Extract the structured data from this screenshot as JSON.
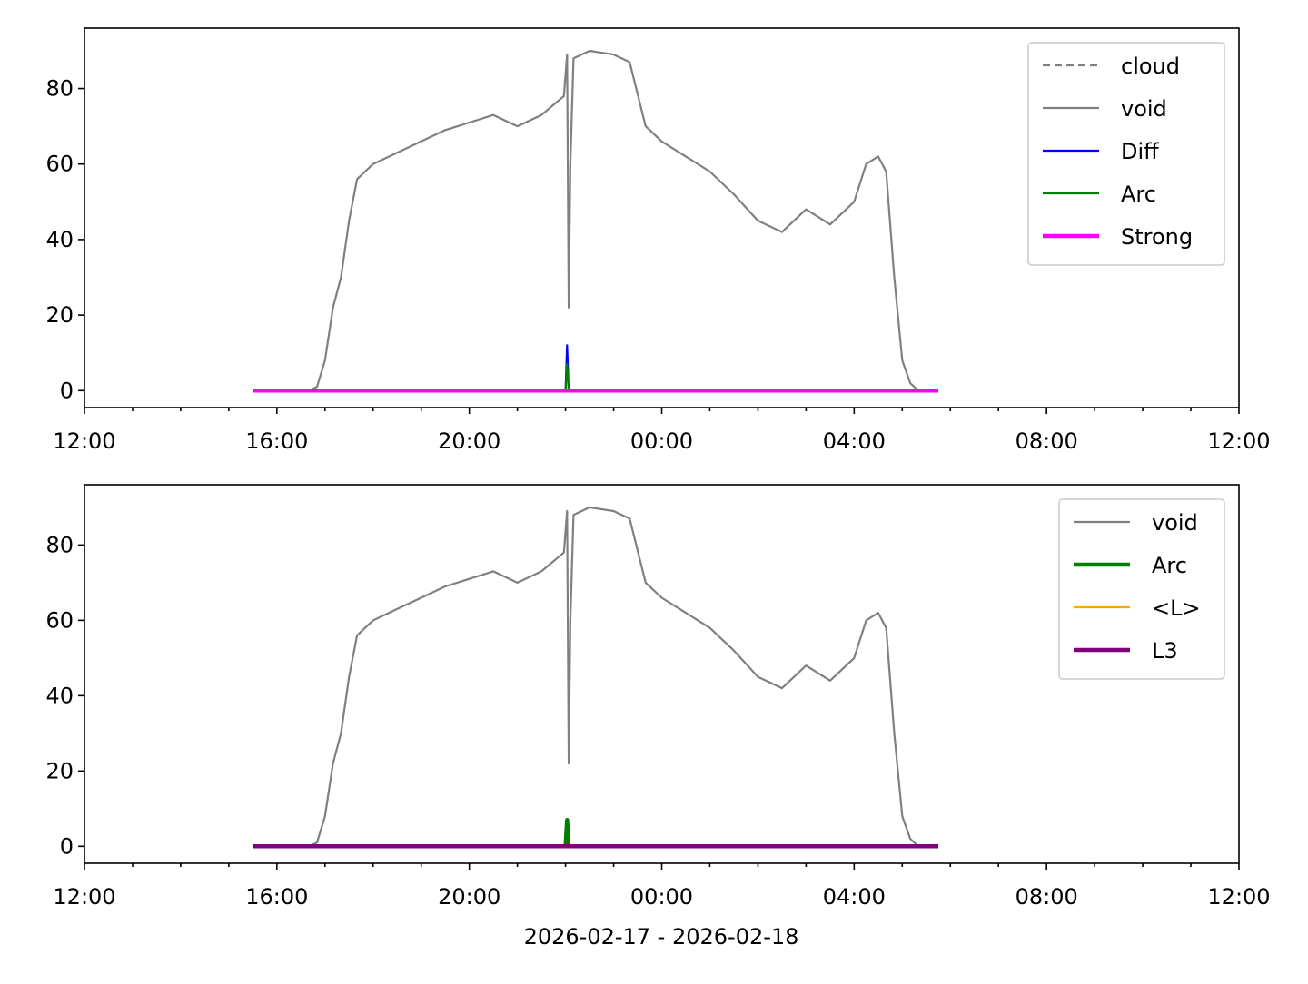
{
  "chart_data": [
    {
      "type": "line",
      "title": "",
      "xlabel": "",
      "ylabel": "",
      "xlim": [
        "2026-02-17 12:00",
        "2026-02-18 12:00"
      ],
      "ylim": [
        -4.5,
        96
      ],
      "x_ticks": [
        "12:00",
        "16:00",
        "20:00",
        "00:00",
        "04:00",
        "08:00",
        "12:00"
      ],
      "y_ticks": [
        "0",
        "20",
        "40",
        "60",
        "80"
      ],
      "grid": false,
      "legend_position": "top-right",
      "series": [
        {
          "name": "cloud",
          "color": "#808080",
          "style": "dashed",
          "x": [],
          "y": []
        },
        {
          "name": "void",
          "color": "#808080",
          "style": "solid",
          "x": [
            "2026-02-17 15:30",
            "2026-02-17 16:40",
            "2026-02-17 16:50",
            "2026-02-17 17:00",
            "2026-02-17 17:10",
            "2026-02-17 17:20",
            "2026-02-17 17:30",
            "2026-02-17 17:40",
            "2026-02-17 17:50",
            "2026-02-17 18:00",
            "2026-02-17 18:30",
            "2026-02-17 19:00",
            "2026-02-17 19:30",
            "2026-02-17 20:00",
            "2026-02-17 20:30",
            "2026-02-17 21:00",
            "2026-02-17 21:30",
            "2026-02-17 21:58",
            "2026-02-17 22:02",
            "2026-02-17 22:04",
            "2026-02-17 22:06",
            "2026-02-17 22:10",
            "2026-02-17 22:30",
            "2026-02-17 23:00",
            "2026-02-17 23:20",
            "2026-02-17 23:40",
            "2026-02-18 00:00",
            "2026-02-18 00:30",
            "2026-02-18 01:00",
            "2026-02-18 01:30",
            "2026-02-18 02:00",
            "2026-02-18 02:30",
            "2026-02-18 03:00",
            "2026-02-18 03:30",
            "2026-02-18 04:00",
            "2026-02-18 04:15",
            "2026-02-18 04:30",
            "2026-02-18 04:40",
            "2026-02-18 04:50",
            "2026-02-18 05:00",
            "2026-02-18 05:10",
            "2026-02-18 05:20",
            "2026-02-18 05:45"
          ],
          "y": [
            0,
            0,
            1,
            8,
            22,
            30,
            45,
            56,
            58,
            60,
            63,
            66,
            69,
            71,
            73,
            70,
            73,
            78,
            89,
            22,
            60,
            88,
            90,
            89,
            87,
            70,
            66,
            62,
            58,
            52,
            45,
            42,
            48,
            44,
            50,
            60,
            62,
            58,
            30,
            8,
            2,
            0,
            0
          ]
        },
        {
          "name": "Diff",
          "color": "#0000ff",
          "style": "solid",
          "x": [
            "2026-02-17 15:30",
            "2026-02-17 22:00",
            "2026-02-17 22:02",
            "2026-02-17 22:04",
            "2026-02-18 05:45"
          ],
          "y": [
            0,
            0,
            12,
            0,
            0
          ]
        },
        {
          "name": "Arc",
          "color": "#008000",
          "style": "solid",
          "x": [
            "2026-02-17 15:30",
            "2026-02-17 22:00",
            "2026-02-17 22:02",
            "2026-02-17 22:04",
            "2026-02-18 05:45"
          ],
          "y": [
            0,
            0,
            7,
            0,
            0
          ]
        },
        {
          "name": "Strong",
          "color": "#ff00ff",
          "style": "solid",
          "x": [
            "2026-02-17 15:30",
            "2026-02-18 05:45"
          ],
          "y": [
            0,
            0
          ]
        }
      ]
    },
    {
      "type": "line",
      "title": "",
      "xlabel": "2026-02-17 - 2026-02-18",
      "ylabel": "",
      "xlim": [
        "2026-02-17 12:00",
        "2026-02-18 12:00"
      ],
      "ylim": [
        -4.5,
        96
      ],
      "x_ticks": [
        "12:00",
        "16:00",
        "20:00",
        "00:00",
        "04:00",
        "08:00",
        "12:00"
      ],
      "y_ticks": [
        "0",
        "20",
        "40",
        "60",
        "80"
      ],
      "grid": false,
      "legend_position": "top-right",
      "series": [
        {
          "name": "void",
          "color": "#808080",
          "style": "solid",
          "x": [
            "2026-02-17 15:30",
            "2026-02-17 16:40",
            "2026-02-17 16:50",
            "2026-02-17 17:00",
            "2026-02-17 17:10",
            "2026-02-17 17:20",
            "2026-02-17 17:30",
            "2026-02-17 17:40",
            "2026-02-17 17:50",
            "2026-02-17 18:00",
            "2026-02-17 18:30",
            "2026-02-17 19:00",
            "2026-02-17 19:30",
            "2026-02-17 20:00",
            "2026-02-17 20:30",
            "2026-02-17 21:00",
            "2026-02-17 21:30",
            "2026-02-17 21:58",
            "2026-02-17 22:02",
            "2026-02-17 22:04",
            "2026-02-17 22:06",
            "2026-02-17 22:10",
            "2026-02-17 22:30",
            "2026-02-17 23:00",
            "2026-02-17 23:20",
            "2026-02-17 23:40",
            "2026-02-18 00:00",
            "2026-02-18 00:30",
            "2026-02-18 01:00",
            "2026-02-18 01:30",
            "2026-02-18 02:00",
            "2026-02-18 02:30",
            "2026-02-18 03:00",
            "2026-02-18 03:30",
            "2026-02-18 04:00",
            "2026-02-18 04:15",
            "2026-02-18 04:30",
            "2026-02-18 04:40",
            "2026-02-18 04:50",
            "2026-02-18 05:00",
            "2026-02-18 05:10",
            "2026-02-18 05:20",
            "2026-02-18 05:45"
          ],
          "y": [
            0,
            0,
            1,
            8,
            22,
            30,
            45,
            56,
            58,
            60,
            63,
            66,
            69,
            71,
            73,
            70,
            73,
            78,
            89,
            22,
            60,
            88,
            90,
            89,
            87,
            70,
            66,
            62,
            58,
            52,
            45,
            42,
            48,
            44,
            50,
            60,
            62,
            58,
            30,
            8,
            2,
            0,
            0
          ]
        },
        {
          "name": "Arc",
          "color": "#008000",
          "style": "solid",
          "x": [
            "2026-02-17 15:30",
            "2026-02-17 22:00",
            "2026-02-17 22:02",
            "2026-02-17 22:04",
            "2026-02-18 05:45"
          ],
          "y": [
            0,
            0,
            7,
            0,
            0
          ]
        },
        {
          "name": "<L>",
          "color": "#ffa500",
          "style": "solid",
          "x": [
            "2026-02-17 15:30",
            "2026-02-18 05:45"
          ],
          "y": [
            0,
            0
          ]
        },
        {
          "name": "L3",
          "color": "#800080",
          "style": "solid",
          "x": [
            "2026-02-17 15:30",
            "2026-02-18 05:45"
          ],
          "y": [
            0,
            0
          ]
        }
      ]
    }
  ]
}
